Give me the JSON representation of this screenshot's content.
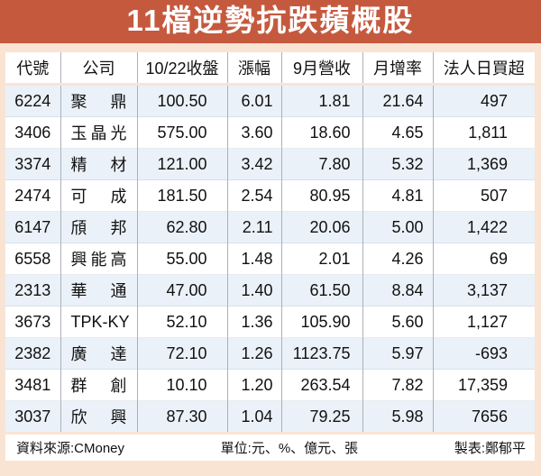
{
  "title": "11檔逆勢抗跌蘋概股",
  "chart_data": {
    "type": "table",
    "title": "11檔逆勢抗跌蘋概股",
    "columns": [
      "代號",
      "公司",
      "10/22收盤",
      "漲幅",
      "9月營收",
      "月增率",
      "法人日買超"
    ],
    "rows": [
      [
        "6224",
        "聚鼎",
        "100.50",
        "6.01",
        "1.81",
        "21.64",
        "497"
      ],
      [
        "3406",
        "玉晶光",
        "575.00",
        "3.60",
        "18.60",
        "4.65",
        "1,811"
      ],
      [
        "3374",
        "精材",
        "121.00",
        "3.42",
        "7.80",
        "5.32",
        "1,369"
      ],
      [
        "2474",
        "可成",
        "181.50",
        "2.54",
        "80.95",
        "4.81",
        "507"
      ],
      [
        "6147",
        "頎邦",
        "62.80",
        "2.11",
        "20.06",
        "5.00",
        "1,422"
      ],
      [
        "6558",
        "興能高",
        "55.00",
        "1.48",
        "2.01",
        "4.26",
        "69"
      ],
      [
        "2313",
        "華通",
        "47.00",
        "1.40",
        "61.50",
        "8.84",
        "3,137"
      ],
      [
        "3673",
        "TPK-KY",
        "52.10",
        "1.36",
        "105.90",
        "5.60",
        "1,127"
      ],
      [
        "2382",
        "廣達",
        "72.10",
        "1.26",
        "1123.75",
        "5.97",
        "-693"
      ],
      [
        "3481",
        "群創",
        "10.10",
        "1.20",
        "263.54",
        "7.82",
        "17,359"
      ],
      [
        "3037",
        "欣興",
        "87.30",
        "1.04",
        "79.25",
        "5.98",
        "7656"
      ]
    ],
    "legend": "none",
    "notes": "Rows alternate light-blue / white starting with light-blue"
  },
  "footer": {
    "source": "資料來源:CMoney",
    "unit": "單位:元、%、億元、張",
    "credit": "製表:鄭郁平"
  },
  "colors": {
    "banner_bg": "#C5593E",
    "page_bg": "#F9E4D4",
    "row_bg": "#FFFFFF",
    "row_alt_bg": "#EAF1F8",
    "divider": "#A9B2BA",
    "title_text": "#FFFFFF",
    "text": "#111111"
  }
}
